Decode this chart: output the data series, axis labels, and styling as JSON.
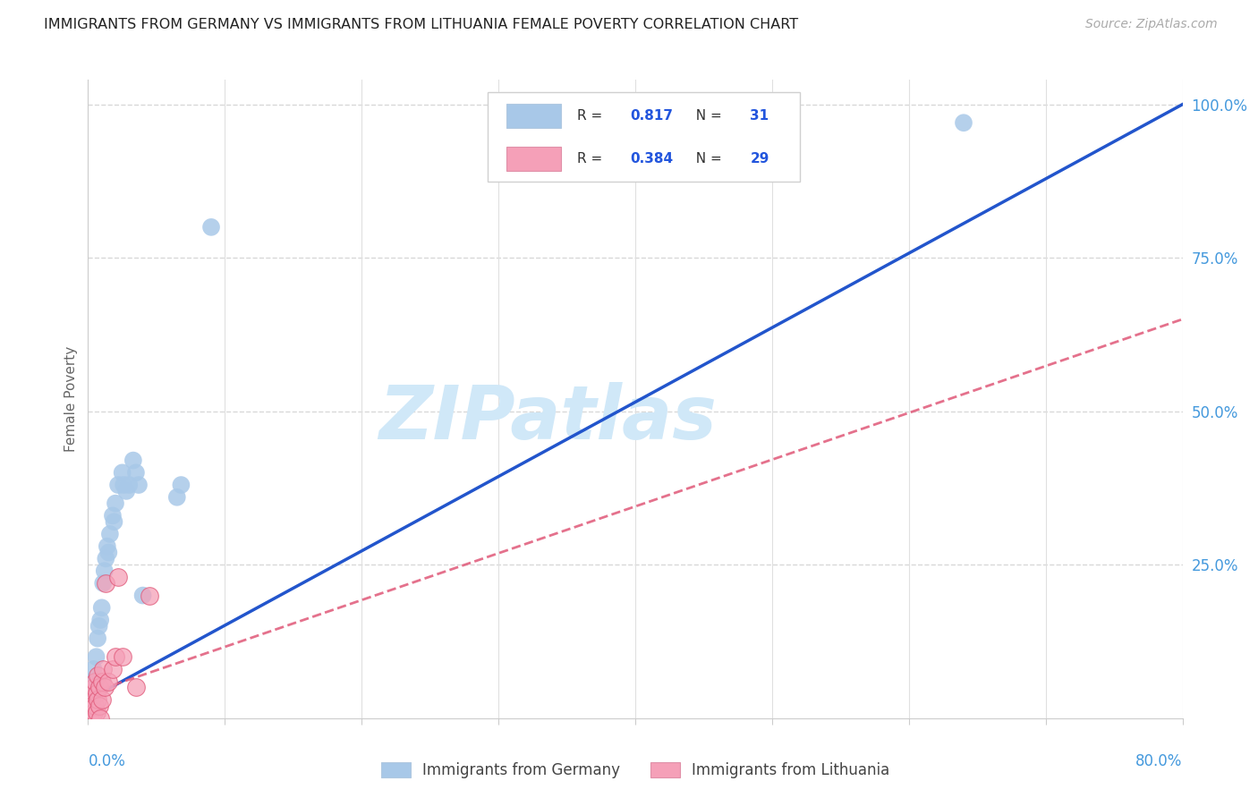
{
  "title": "IMMIGRANTS FROM GERMANY VS IMMIGRANTS FROM LITHUANIA FEMALE POVERTY CORRELATION CHART",
  "source": "Source: ZipAtlas.com",
  "ylabel": "Female Poverty",
  "watermark": "ZIPatlas",
  "germany": {
    "R": 0.817,
    "N": 31,
    "color": "#a8c8e8",
    "line_color": "#2255cc",
    "label": "Immigrants from Germany",
    "x": [
      0.002,
      0.003,
      0.004,
      0.005,
      0.006,
      0.007,
      0.008,
      0.009,
      0.01,
      0.011,
      0.012,
      0.013,
      0.014,
      0.015,
      0.016,
      0.018,
      0.019,
      0.02,
      0.022,
      0.025,
      0.026,
      0.028,
      0.03,
      0.033,
      0.035,
      0.037,
      0.04,
      0.065,
      0.068,
      0.09,
      0.64
    ],
    "y": [
      0.04,
      0.06,
      0.08,
      0.06,
      0.1,
      0.13,
      0.15,
      0.16,
      0.18,
      0.22,
      0.24,
      0.26,
      0.28,
      0.27,
      0.3,
      0.33,
      0.32,
      0.35,
      0.38,
      0.4,
      0.38,
      0.37,
      0.38,
      0.42,
      0.4,
      0.38,
      0.2,
      0.36,
      0.38,
      0.8,
      0.97
    ]
  },
  "lithuania": {
    "R": 0.384,
    "N": 29,
    "color": "#f5a0b8",
    "line_color": "#e05878",
    "label": "Immigrants from Lithuania",
    "x": [
      0.001,
      0.001,
      0.002,
      0.002,
      0.003,
      0.003,
      0.004,
      0.004,
      0.005,
      0.005,
      0.006,
      0.006,
      0.007,
      0.007,
      0.008,
      0.008,
      0.009,
      0.01,
      0.01,
      0.011,
      0.012,
      0.013,
      0.015,
      0.018,
      0.02,
      0.022,
      0.025,
      0.035,
      0.045
    ],
    "y": [
      0.0,
      0.03,
      0.0,
      0.04,
      0.0,
      0.02,
      0.01,
      0.05,
      0.02,
      0.06,
      0.01,
      0.04,
      0.03,
      0.07,
      0.02,
      0.05,
      0.0,
      0.03,
      0.06,
      0.08,
      0.05,
      0.22,
      0.06,
      0.08,
      0.1,
      0.23,
      0.1,
      0.05,
      0.2
    ]
  },
  "xlim": [
    0,
    0.8
  ],
  "ylim": [
    0,
    1.04
  ],
  "ytick_positions": [
    0.25,
    0.5,
    0.75,
    1.0
  ],
  "ytick_labels": [
    "25.0%",
    "50.0%",
    "75.0%",
    "100.0%"
  ],
  "xtick_positions": [
    0.0,
    0.1,
    0.2,
    0.3,
    0.4,
    0.5,
    0.6,
    0.7,
    0.8
  ],
  "background_color": "#ffffff",
  "grid_color": "#d8d8d8",
  "title_color": "#222222",
  "source_color": "#aaaaaa",
  "axis_tick_color": "#4499dd",
  "watermark_color": "#d0e8f8",
  "legend_value_color": "#2255dd",
  "legend_label_color": "#333333"
}
